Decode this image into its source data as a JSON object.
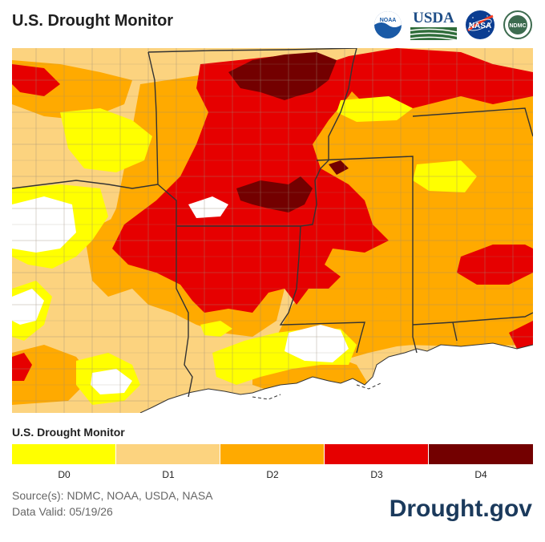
{
  "header": {
    "title": "U.S. Drought Monitor",
    "logos": [
      {
        "name": "noaa-logo",
        "text": "NOAA"
      },
      {
        "name": "usda-logo",
        "text": "USDA"
      },
      {
        "name": "nasa-logo",
        "text": "NASA"
      },
      {
        "name": "ndmc-logo",
        "text": "NDMC"
      }
    ]
  },
  "map": {
    "region": "Lower Mississippi Valley / Gulf Coast",
    "categories_shown": [
      "D0",
      "D1",
      "D2",
      "D3",
      "D4"
    ]
  },
  "legend": {
    "title": "U.S. Drought Monitor",
    "items": [
      {
        "label": "D0",
        "color": "#ffff00"
      },
      {
        "label": "D1",
        "color": "#fcd37f"
      },
      {
        "label": "D2",
        "color": "#ffaa00"
      },
      {
        "label": "D3",
        "color": "#e60000"
      },
      {
        "label": "D4",
        "color": "#730000"
      }
    ]
  },
  "footer": {
    "source": "Source(s): NDMC, NOAA, USDA, NASA",
    "valid": "Data Valid: 05/19/26",
    "brand": "Drought.gov"
  },
  "colors": {
    "water": "#ffffff",
    "state_border": "#333333",
    "county_border": "#9a8c7a"
  }
}
